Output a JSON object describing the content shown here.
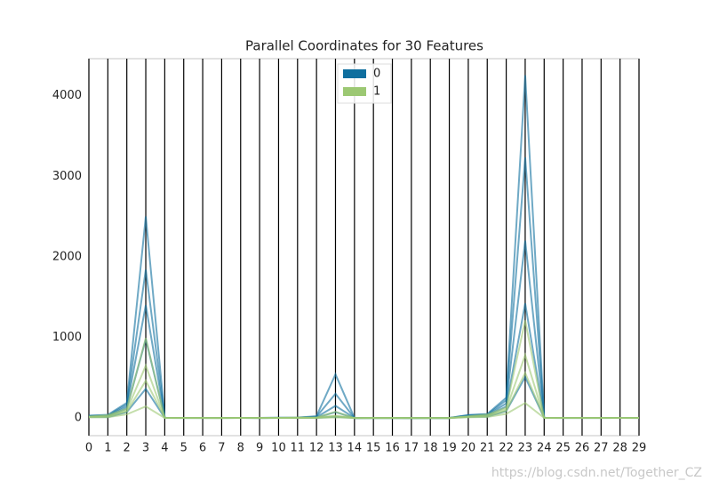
{
  "chart_data": {
    "type": "parallel",
    "title": "Parallel Coordinates for 30 Features",
    "categories": [
      "0",
      "1",
      "2",
      "3",
      "4",
      "5",
      "6",
      "7",
      "8",
      "9",
      "10",
      "11",
      "12",
      "13",
      "14",
      "15",
      "16",
      "17",
      "18",
      "19",
      "20",
      "21",
      "22",
      "23",
      "24",
      "25",
      "26",
      "27",
      "28",
      "29"
    ],
    "ylim": [
      -220,
      4460
    ],
    "yticks": [
      0,
      1000,
      2000,
      3000,
      4000
    ],
    "legend": "upper center",
    "series": [
      {
        "name": "0",
        "color": "#0f6f9f",
        "lines": [
          [
            28,
            39,
            188,
            2501,
            0.16,
            0.35,
            0.43,
            0.2,
            0.3,
            0.1,
            2.9,
            4.9,
            22,
            542,
            0.03,
            0.14,
            0.14,
            0.05,
            0.08,
            0.03,
            36,
            49,
            251,
            4254,
            0.22,
            1.06,
            1.25,
            0.29,
            0.66,
            0.21
          ],
          [
            25,
            30,
            166,
            1841,
            0.13,
            0.28,
            0.35,
            0.18,
            0.25,
            0.08,
            2.2,
            3.6,
            16,
            300,
            0.02,
            0.1,
            0.1,
            0.04,
            0.06,
            0.02,
            32,
            42,
            220,
            3234,
            0.2,
            0.9,
            1.0,
            0.27,
            0.5,
            0.17
          ],
          [
            21,
            26,
            140,
            1400,
            0.12,
            0.2,
            0.25,
            0.14,
            0.22,
            0.07,
            1.2,
            1.5,
            9,
            150,
            0.01,
            0.05,
            0.06,
            0.02,
            0.03,
            0.01,
            26,
            34,
            180,
            2200,
            0.17,
            0.5,
            0.6,
            0.22,
            0.38,
            0.11
          ],
          [
            17.5,
            21.6,
            115,
            978,
            0.1,
            0.15,
            0.16,
            0.09,
            0.19,
            0.06,
            0.6,
            1.2,
            4.3,
            72,
            0.007,
            0.03,
            0.04,
            0.015,
            0.02,
            0.004,
            21.1,
            29.3,
            141,
            1422,
            0.14,
            0.37,
            0.45,
            0.18,
            0.32,
            0.09
          ],
          [
            11,
            10,
            72,
            362,
            0.07,
            0.05,
            0.02,
            0.02,
            0.13,
            0.05,
            0.2,
            0.4,
            1.3,
            14,
            0.002,
            0.008,
            0.01,
            0.006,
            0.007,
            0.001,
            12.8,
            16,
            85,
            508,
            0.08,
            0.05,
            0.02,
            0.03,
            0.16,
            0.06
          ]
        ]
      },
      {
        "name": "1",
        "color": "#9cc873",
        "lines": [
          [
            17.9,
            33.8,
            114.6,
            992,
            0.16,
            0.22,
            0.41,
            0.09,
            0.27,
            0.1,
            0.9,
            4.9,
            5.1,
            77,
            0.02,
            0.1,
            0.4,
            0.05,
            0.06,
            0.03,
            19.8,
            41.8,
            127,
            1210,
            0.2,
            0.58,
            1.25,
            0.18,
            0.42,
            0.15
          ],
          [
            14.5,
            22,
            94,
            650,
            0.1,
            0.1,
            0.07,
            0.04,
            0.2,
            0.07,
            0.3,
            1.5,
            2.5,
            28,
            0.008,
            0.025,
            0.03,
            0.01,
            0.02,
            0.004,
            16,
            30,
            105,
            780,
            0.14,
            0.2,
            0.2,
            0.1,
            0.3,
            0.08
          ],
          [
            12.1,
            17.9,
            78,
            462,
            0.09,
            0.08,
            0.05,
            0.03,
            0.17,
            0.06,
            0.28,
            1.2,
            2.0,
            21,
            0.007,
            0.02,
            0.03,
            0.01,
            0.02,
            0.003,
            13.4,
            23.5,
            87,
            558,
            0.12,
            0.18,
            0.17,
            0.07,
            0.27,
            0.08
          ],
          [
            7,
            9.7,
            44,
            143,
            0.05,
            0.02,
            0,
            0,
            0.11,
            0.05,
            0.11,
            0.36,
            0.76,
            6.8,
            0.002,
            0.002,
            0,
            0,
            0.008,
            0.001,
            7.9,
            12,
            50,
            185,
            0.07,
            0.03,
            0,
            0,
            0.16,
            0.06
          ]
        ]
      }
    ],
    "watermark": "https://blog.csdn.net/Together_CZ"
  }
}
